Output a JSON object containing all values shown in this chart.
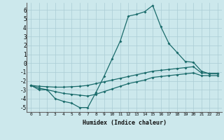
{
  "xlabel": "Humidex (Indice chaleur)",
  "background_color": "#cce8ec",
  "grid_color": "#aaccd4",
  "line_color": "#1a6b6b",
  "xlim": [
    -0.5,
    23.5
  ],
  "ylim": [
    -5.5,
    6.8
  ],
  "xticks": [
    0,
    1,
    2,
    3,
    4,
    5,
    6,
    7,
    8,
    9,
    10,
    11,
    12,
    13,
    14,
    15,
    16,
    17,
    18,
    19,
    20,
    21,
    22,
    23
  ],
  "yticks": [
    -5,
    -4,
    -3,
    -2,
    -1,
    0,
    1,
    2,
    3,
    4,
    5,
    6
  ],
  "main_x": [
    0,
    1,
    2,
    3,
    4,
    5,
    6,
    7,
    8,
    9,
    10,
    11,
    12,
    13,
    14,
    15,
    16,
    17,
    18,
    19,
    20,
    21,
    22,
    23
  ],
  "main_y": [
    -2.5,
    -3.0,
    -3.0,
    -4.0,
    -4.3,
    -4.5,
    -5.0,
    -5.0,
    -3.3,
    -1.5,
    0.5,
    2.5,
    5.3,
    5.5,
    5.8,
    6.5,
    4.1,
    2.2,
    1.2,
    0.2,
    0.1,
    -0.9,
    -1.2,
    -1.2
  ],
  "upper_x": [
    0,
    1,
    2,
    3,
    4,
    5,
    6,
    7,
    8,
    9,
    10,
    11,
    12,
    13,
    14,
    15,
    16,
    17,
    18,
    19,
    20,
    21,
    22,
    23
  ],
  "upper_y": [
    -2.5,
    -2.6,
    -2.65,
    -2.7,
    -2.7,
    -2.65,
    -2.6,
    -2.5,
    -2.3,
    -2.1,
    -1.9,
    -1.7,
    -1.5,
    -1.3,
    -1.1,
    -0.9,
    -0.8,
    -0.7,
    -0.6,
    -0.5,
    -0.4,
    -1.1,
    -1.15,
    -1.15
  ],
  "lower_x": [
    0,
    1,
    2,
    3,
    4,
    5,
    6,
    7,
    8,
    9,
    10,
    11,
    12,
    13,
    14,
    15,
    16,
    17,
    18,
    19,
    20,
    21,
    22,
    23
  ],
  "lower_y": [
    -2.5,
    -2.8,
    -3.0,
    -3.2,
    -3.4,
    -3.5,
    -3.6,
    -3.7,
    -3.5,
    -3.2,
    -2.9,
    -2.6,
    -2.3,
    -2.1,
    -1.9,
    -1.6,
    -1.5,
    -1.4,
    -1.3,
    -1.2,
    -1.1,
    -1.4,
    -1.4,
    -1.4
  ]
}
